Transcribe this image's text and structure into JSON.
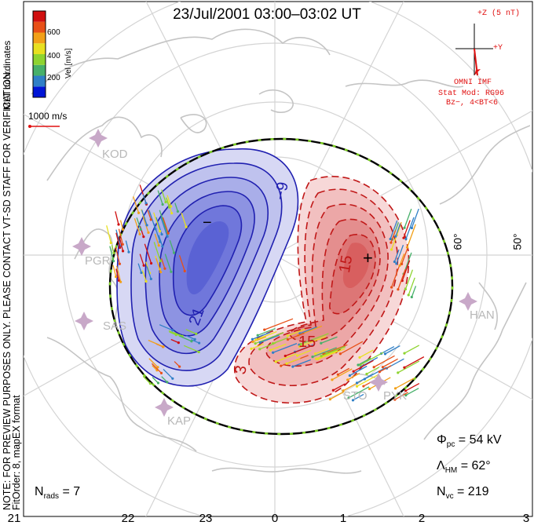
{
  "title": "23/Jul/2001  03:00–03:02  UT",
  "side_notes": {
    "coords": "MLT coordinates",
    "notice": "NOTE: FOR PREVIEW PURPOSES ONLY. PLEASE CONTACT VT-SD STAFF FOR VERIFICATION.",
    "fit": "FitOrder: 8, mapEX format"
  },
  "colorbar": {
    "label": "Vel [m/s]",
    "ticks": [
      "600",
      "400",
      "200"
    ],
    "colors": [
      "#0015d6",
      "#2f7fc7",
      "#47b06a",
      "#8ed430",
      "#e8e020",
      "#f2a018",
      "#e85018",
      "#d01010"
    ]
  },
  "velocity_scale": "1000 m/s",
  "imf": {
    "z_label": "+Z (5 nT)",
    "y_label": "+Y",
    "source": "OMNI IMF",
    "model": "Stat Mod: RG96",
    "condition": "Bz−, 4<BT<6"
  },
  "contours": {
    "neg_labels": [
      "−9",
      "21",
      "−"
    ],
    "pos_labels": [
      "15",
      "15",
      "3",
      "+"
    ]
  },
  "stations": [
    "KOD",
    "PGR",
    "SAS",
    "KAP",
    "HAN",
    "STO",
    "PYK"
  ],
  "latitudes": [
    "60°",
    "50°"
  ],
  "stats": {
    "phi_pc": "= 54 kV",
    "lambda_hm": "= 62°",
    "n_vc": "= 219",
    "n_rads": "= 7"
  },
  "mlt_axis": [
    "21",
    "22",
    "23",
    "0",
    "1",
    "2",
    "3"
  ],
  "colors": {
    "neg_cell": "#3a3ad8",
    "pos_cell": "#d83030",
    "land": "#c8c8c8",
    "grid": "#d0d0d0",
    "imf": "#e01010"
  }
}
